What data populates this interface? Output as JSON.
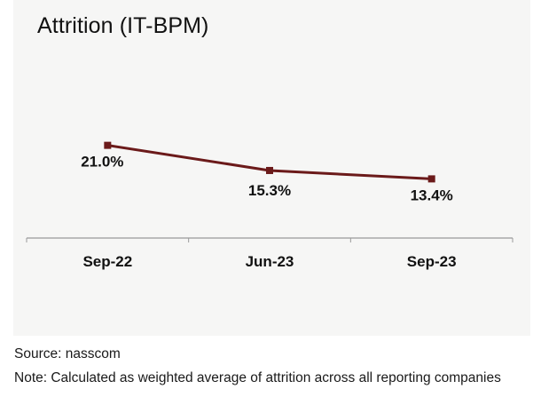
{
  "chart_data": {
    "type": "line",
    "title": "Attrition (IT-BPM)",
    "categories": [
      "Sep-22",
      "Jun-23",
      "Sep-23"
    ],
    "values": [
      21.0,
      15.3,
      13.4
    ],
    "value_labels": [
      "21.0%",
      "15.3%",
      "13.4%"
    ],
    "unit": "%",
    "xlabel": "",
    "ylabel": "",
    "ylim": [
      0,
      35
    ],
    "grid": false,
    "legend": "none",
    "series_color": "#6b1a1a",
    "axis_color": "#9a9a9a"
  },
  "footer": {
    "source": "Source: nasscom",
    "note": "Note: Calculated as weighted average of attrition across all reporting companies"
  }
}
